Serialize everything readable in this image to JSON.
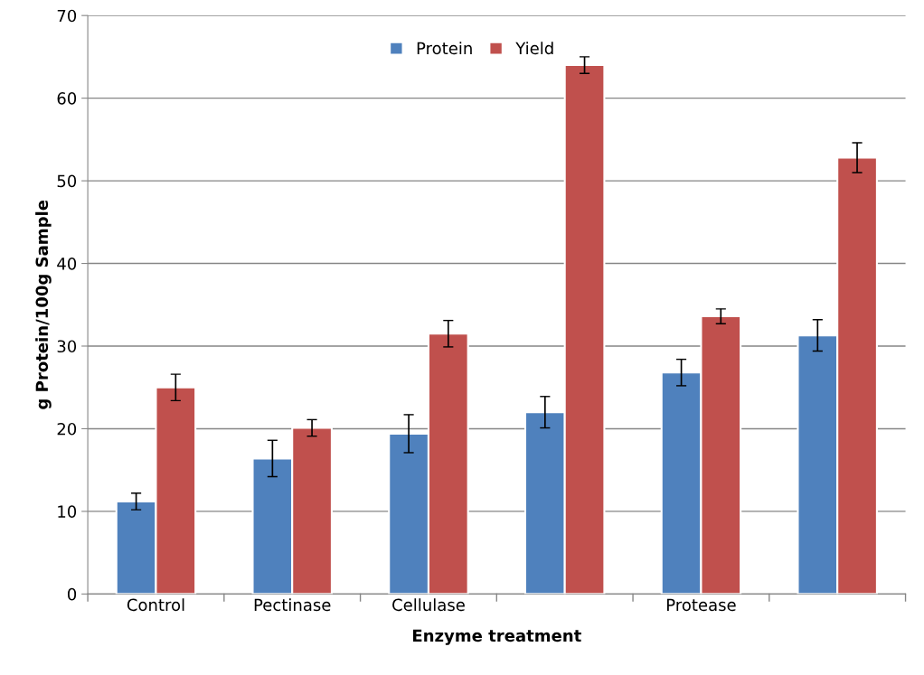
{
  "chart_data": {
    "type": "bar",
    "xlabel": "Enzyme treatment",
    "ylabel": "g Protein/100g Sample",
    "categories": [
      "Control",
      "Pectinase",
      "Cellulase",
      null,
      "Protease",
      null
    ],
    "series": [
      {
        "name": "Protein",
        "color": "#4f81bd",
        "values": [
          11.2,
          16.4,
          19.4,
          22.0,
          26.8,
          31.3
        ],
        "errors": [
          1.0,
          2.2,
          2.3,
          1.9,
          1.6,
          1.9
        ]
      },
      {
        "name": "Yield",
        "color": "#c0504d",
        "values": [
          25.0,
          20.1,
          31.5,
          64.0,
          33.6,
          52.8
        ],
        "errors": [
          1.6,
          1.0,
          1.6,
          1.0,
          0.9,
          1.8
        ]
      }
    ],
    "ylim": [
      0,
      70
    ],
    "yticks": [
      0,
      10,
      20,
      30,
      40,
      50,
      60,
      70
    ],
    "grid": "y",
    "legend": "top"
  }
}
